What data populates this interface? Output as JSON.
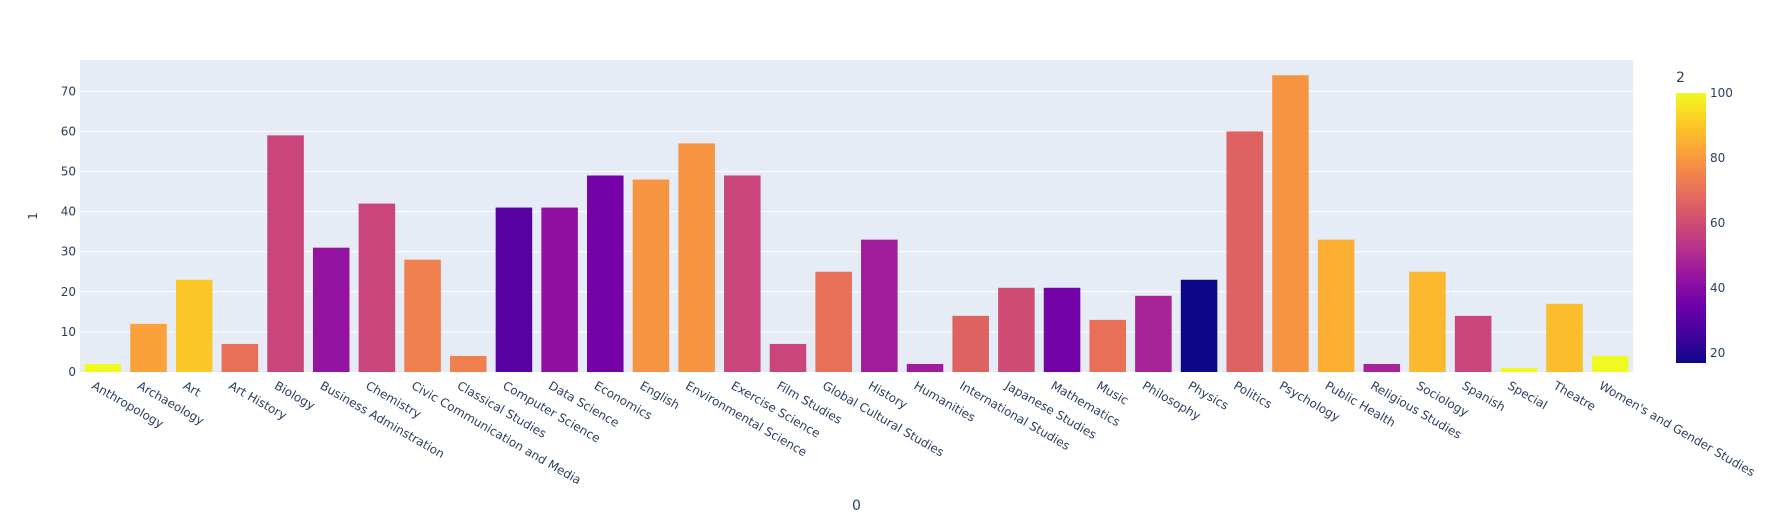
{
  "chart_data": {
    "type": "bar",
    "xlabel": "0",
    "ylabel": "1",
    "colorbar_title": "2",
    "ylim": [
      0,
      77.8
    ],
    "yticks": [
      0,
      10,
      20,
      30,
      40,
      50,
      60,
      70
    ],
    "colorbar_range": [
      17,
      100
    ],
    "colorbar_ticks": [
      20,
      40,
      60,
      80,
      100
    ],
    "colorscale": [
      "#0d0887",
      "#46039f",
      "#7201a8",
      "#9c179e",
      "#bd3786",
      "#d8576b",
      "#ed7953",
      "#fb9f3a",
      "#fdca26",
      "#f0f921"
    ],
    "plot_bg": "#e5ecf6",
    "categories": [
      "Anthropology",
      "Archaeology",
      "Art",
      "Art History",
      "Biology",
      "Business Adminstration",
      "Chemistry",
      "Civic Communication and Media",
      "Classical Studies",
      "Computer Science",
      "Data Science",
      "Economics",
      "English",
      "Environmental Science",
      "Exercise Science",
      "Film Studies",
      "Global Cultural Studies",
      "History",
      "Humanities",
      "International Studies",
      "Japanese Studies",
      "Mathematics",
      "Music",
      "Philosophy",
      "Physics",
      "Politics",
      "Psychology",
      "Public Health",
      "Religious Studies",
      "Sociology",
      "Spanish",
      "Special",
      "Theatre",
      "Women's and Gender Studies"
    ],
    "values": [
      2,
      12,
      23,
      7,
      59,
      31,
      42,
      28,
      4,
      41,
      41,
      49,
      48,
      57,
      49,
      7,
      25,
      33,
      2,
      14,
      21,
      21,
      13,
      19,
      23,
      60,
      74,
      33,
      2,
      25,
      14,
      1,
      17,
      4
    ],
    "colors": [
      100,
      82,
      90,
      70,
      58,
      43,
      58,
      74,
      74,
      30,
      42,
      36,
      79,
      79,
      58,
      58,
      70,
      46,
      46,
      66,
      60,
      36,
      70,
      48,
      17,
      66,
      79,
      85,
      48,
      87,
      58,
      100,
      88,
      100
    ]
  }
}
